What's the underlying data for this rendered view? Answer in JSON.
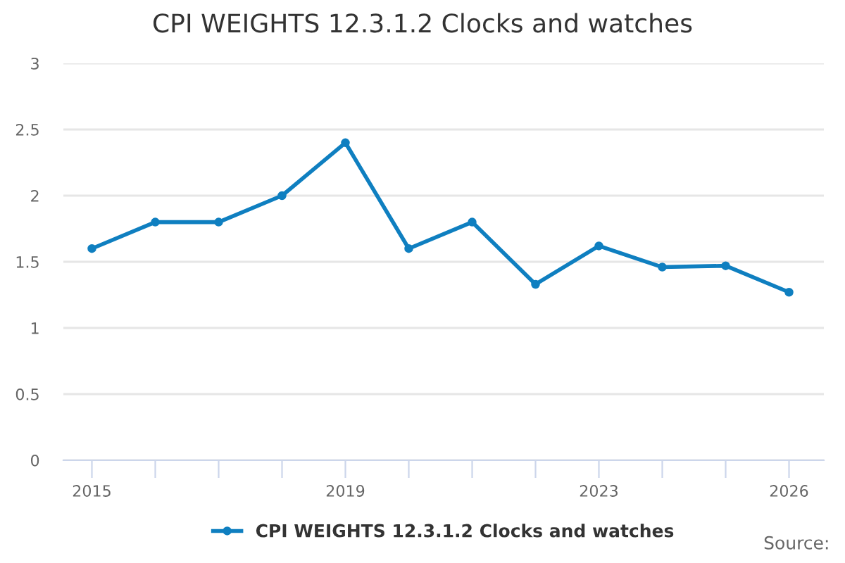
{
  "chart_data": {
    "type": "line",
    "title": "CPI WEIGHTS 12.3.1.2 Clocks and watches",
    "x": [
      2015,
      2016,
      2017,
      2018,
      2019,
      2020,
      2021,
      2022,
      2023,
      2024,
      2025,
      2026
    ],
    "series": [
      {
        "name": "CPI WEIGHTS 12.3.1.2 Clocks and watches",
        "color": "#0f7fc0",
        "values": [
          1.6,
          1.8,
          1.8,
          2.0,
          2.4,
          1.6,
          1.8,
          1.33,
          1.62,
          1.46,
          1.47,
          1.27
        ]
      }
    ],
    "xlim": [
      2014.55,
      2026.55
    ],
    "xticks": [
      2015,
      {
        "value": 2016,
        "label": null
      },
      {
        "value": 2017,
        "label": null
      },
      {
        "value": 2018,
        "label": null
      },
      2019,
      {
        "value": 2020,
        "label": null
      },
      {
        "value": 2021,
        "label": null
      },
      {
        "value": 2022,
        "label": null
      },
      2023,
      {
        "value": 2024,
        "label": null
      },
      {
        "value": 2025,
        "label": null
      },
      2026
    ],
    "ylim": [
      0,
      3
    ],
    "yticks": [
      0,
      0.5,
      1,
      1.5,
      2,
      2.5,
      3
    ],
    "grid": "y",
    "legend": "bottom",
    "marker": "circle",
    "line_style": "solid",
    "annotations": [
      "Source:"
    ]
  }
}
